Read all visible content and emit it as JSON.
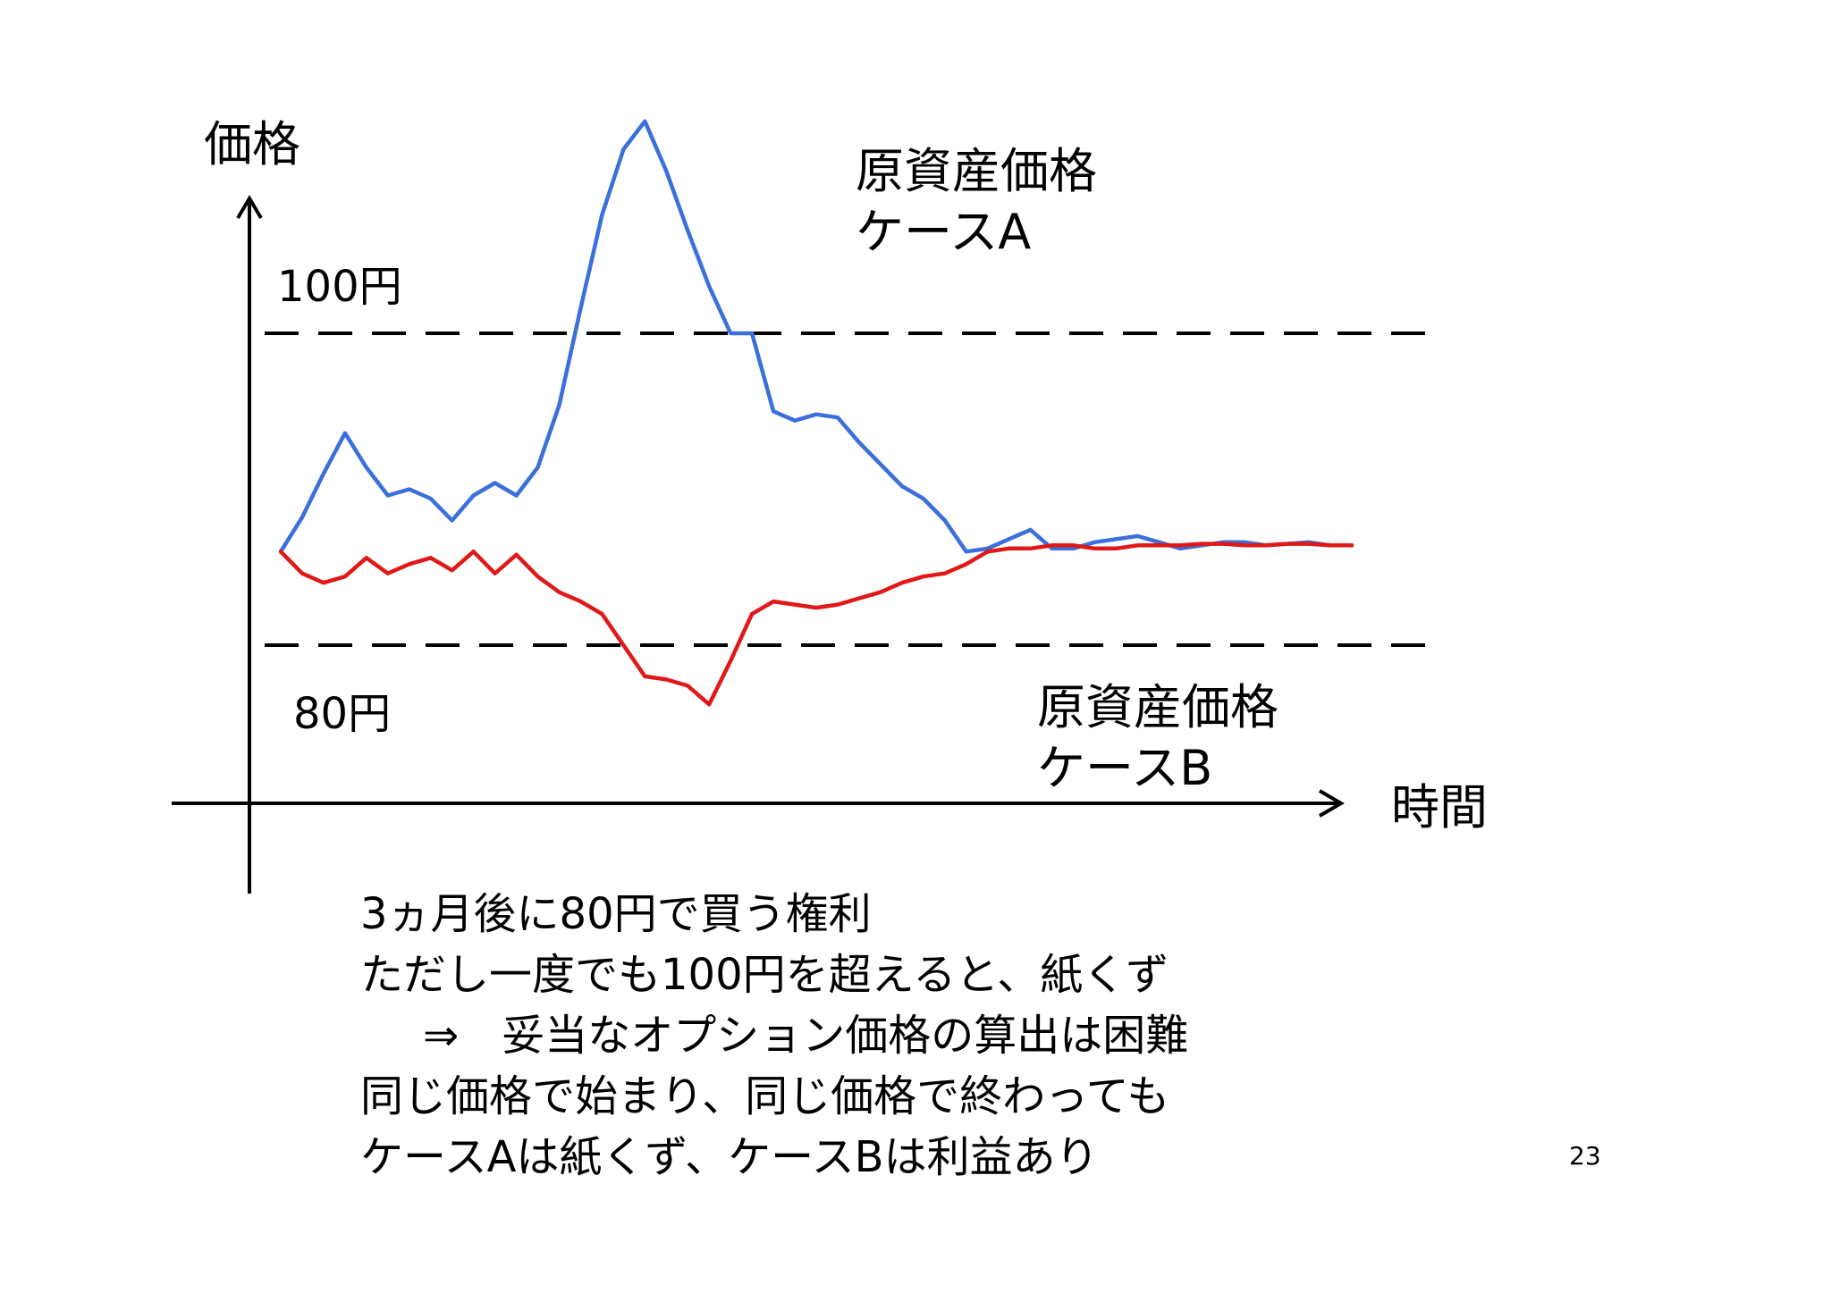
{
  "chart_data": {
    "type": "line",
    "ylabel": "価格",
    "xlabel": "時間",
    "reference_lines": [
      {
        "label": "100円",
        "value": 100
      },
      {
        "label": "80円",
        "value": 80
      }
    ],
    "x": [
      0,
      2,
      4,
      6,
      8,
      10,
      12,
      14,
      16,
      18,
      20,
      22,
      24,
      26,
      28,
      30,
      32,
      34,
      36,
      38,
      40,
      42,
      44,
      46,
      48,
      50,
      52,
      54,
      56,
      58,
      60,
      62,
      64,
      66,
      68,
      70,
      72,
      74,
      76,
      78,
      80,
      82,
      84,
      86,
      88,
      90,
      92,
      94,
      96,
      98,
      100
    ],
    "series": [
      {
        "name": "原資産価格\nケースA",
        "color": "#3a6fdc",
        "values": [
          86.0,
          88.2,
          91.0,
          93.6,
          91.4,
          89.6,
          90.0,
          89.4,
          88.0,
          89.6,
          90.4,
          89.6,
          91.4,
          95.4,
          101.6,
          107.6,
          111.8,
          113.6,
          110.4,
          106.6,
          103.0,
          100.0,
          100.0,
          95.0,
          94.4,
          94.8,
          94.6,
          93.0,
          91.6,
          90.2,
          89.4,
          88.0,
          86.0,
          86.2,
          86.8,
          87.4,
          86.2,
          86.2,
          86.6,
          86.8,
          87.0,
          86.6,
          86.2,
          86.4,
          86.6,
          86.6,
          86.4,
          86.5,
          86.6,
          86.4,
          86.4
        ]
      },
      {
        "name": "原資産価格\nケースB",
        "color": "#e01818",
        "values": [
          86.0,
          84.6,
          84.0,
          84.4,
          85.6,
          84.6,
          85.2,
          85.6,
          84.8,
          86.0,
          84.6,
          85.8,
          84.4,
          83.4,
          82.8,
          82.0,
          80.0,
          78.0,
          77.8,
          77.4,
          76.2,
          79.0,
          82.0,
          82.8,
          82.6,
          82.4,
          82.6,
          83.0,
          83.4,
          84.0,
          84.4,
          84.6,
          85.2,
          86.0,
          86.2,
          86.2,
          86.4,
          86.4,
          86.2,
          86.2,
          86.4,
          86.4,
          86.4,
          86.5,
          86.5,
          86.4,
          86.4,
          86.5,
          86.5,
          86.4,
          86.4
        ]
      }
    ],
    "xlim": [
      0,
      100
    ],
    "ylim": [
      68,
      118
    ],
    "grid": false,
    "legend": "none"
  },
  "caption": {
    "line1": "3ヵ月後に80円で買う権利",
    "line2": "ただし一度でも100円を超えると、紙くず",
    "line3": "⇒　妥当なオプション価格の算出は困難",
    "line4": "同じ価格で始まり、同じ価格で終わっても",
    "line5": "ケースAは紙くず、ケースBは利益あり"
  },
  "page_number": "23"
}
